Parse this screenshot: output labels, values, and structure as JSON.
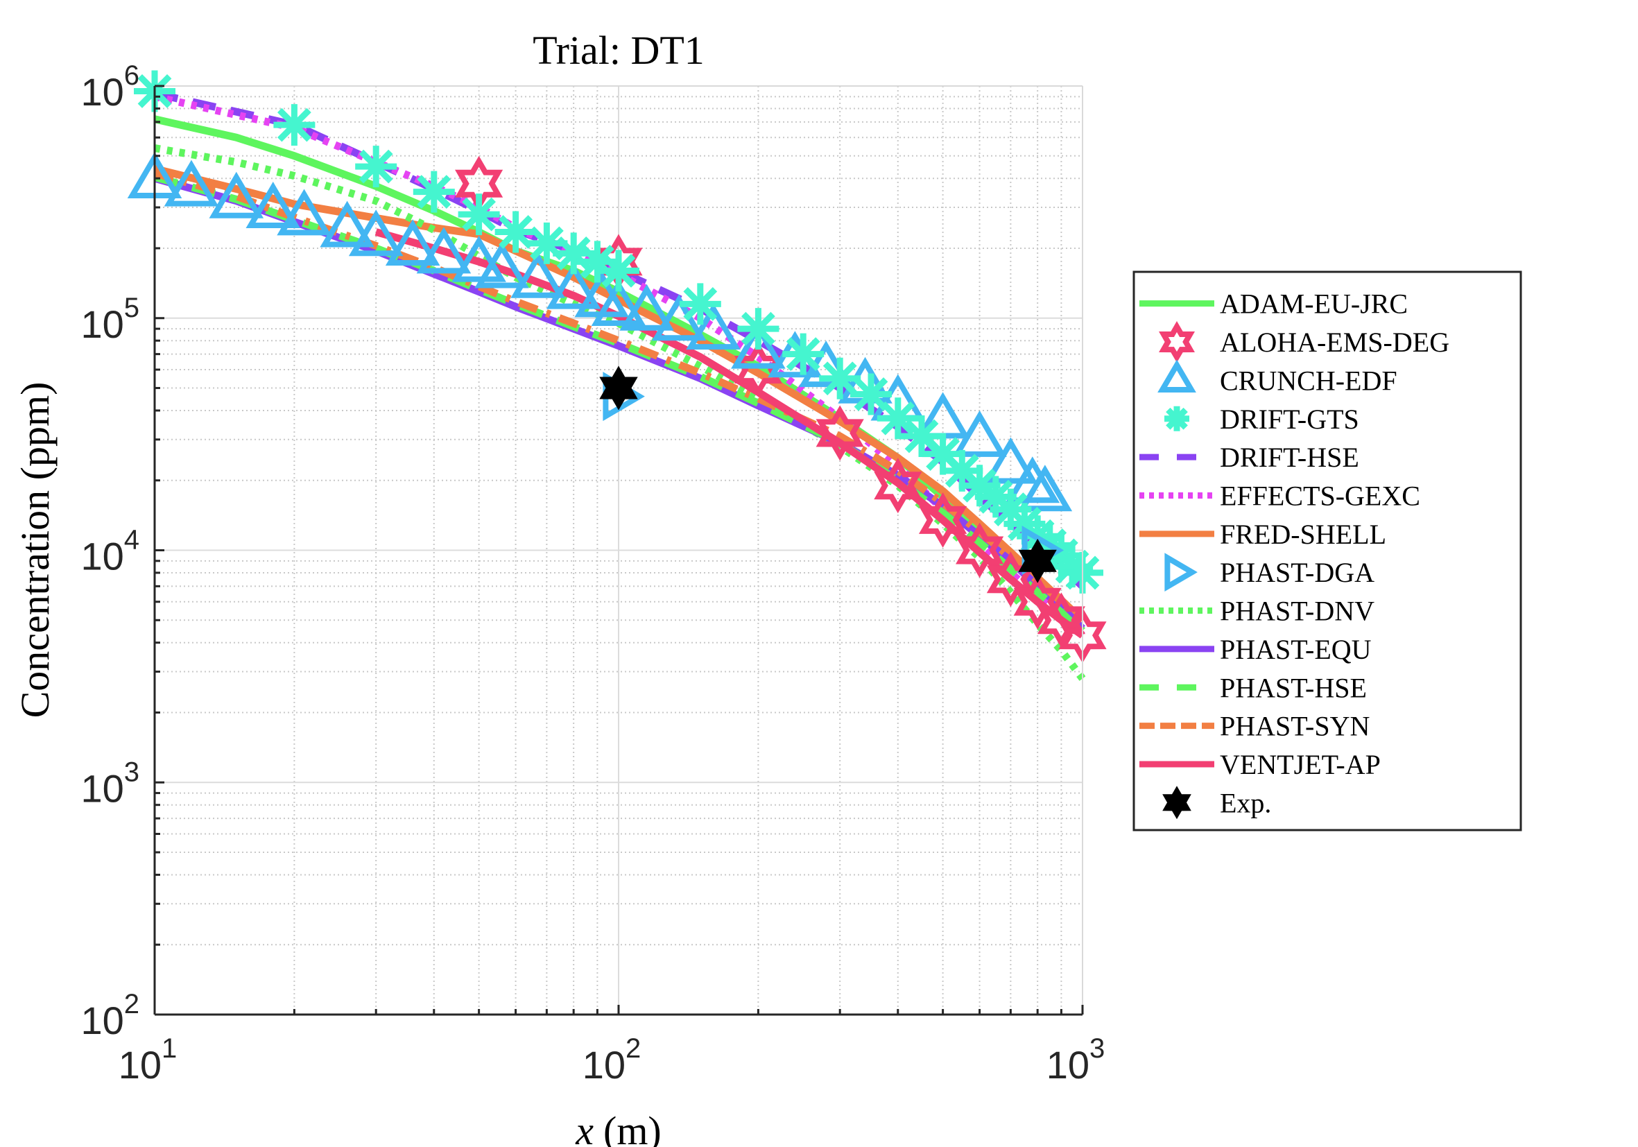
{
  "chart_data": {
    "type": "line",
    "title": "Trial: DT1",
    "xlabel": "x (m)",
    "xlabel_var": "x",
    "xlabel_unit": "(m)",
    "ylabel": "Concentration (ppm)",
    "xscale": "log",
    "yscale": "log",
    "xlim": [
      10,
      1000
    ],
    "ylim": [
      100,
      1000000
    ],
    "x_ticks": [
      {
        "base": "10",
        "exp": "1",
        "value": 10
      },
      {
        "base": "10",
        "exp": "2",
        "value": 100
      },
      {
        "base": "10",
        "exp": "3",
        "value": 1000
      }
    ],
    "y_ticks": [
      {
        "base": "10",
        "exp": "2",
        "value": 100
      },
      {
        "base": "10",
        "exp": "3",
        "value": 1000
      },
      {
        "base": "10",
        "exp": "4",
        "value": 10000
      },
      {
        "base": "10",
        "exp": "5",
        "value": 100000
      },
      {
        "base": "10",
        "exp": "6",
        "value": 1000000
      }
    ],
    "grid": true,
    "minor_grid": true,
    "legend_position": "outside-right",
    "series": [
      {
        "name": "ADAM-EU-JRC",
        "style": "solid",
        "marker": "none",
        "color": "#5ef55e",
        "x": [
          10,
          15,
          20,
          30,
          40,
          50,
          60,
          80,
          100,
          150,
          200,
          300,
          400,
          500,
          600,
          700,
          800,
          900,
          1000
        ],
        "y": [
          720000,
          600000,
          500000,
          370000,
          290000,
          235000,
          195000,
          160000,
          130000,
          85000,
          62000,
          37000,
          25000,
          17000,
          12000,
          9000,
          7000,
          5600,
          4500
        ]
      },
      {
        "name": "ALOHA-EMS-DEG",
        "style": "none",
        "marker": "hexagram-open",
        "color": "#f23f72",
        "x": [
          50,
          100,
          200,
          300,
          400,
          500,
          600,
          700,
          800,
          900,
          1000
        ],
        "y": [
          380000,
          175000,
          60000,
          32000,
          19000,
          13500,
          10000,
          7500,
          6000,
          5000,
          4300
        ]
      },
      {
        "name": "CRUNCH-EDF",
        "style": "none",
        "marker": "triangle-up-open",
        "color": "#43b6f2",
        "x": [
          10,
          12,
          15,
          18,
          21,
          26,
          30,
          36,
          42,
          50,
          56,
          67,
          80,
          92,
          100,
          115,
          135,
          160,
          200,
          240,
          280,
          340,
          400,
          500,
          600,
          700,
          780,
          830
        ],
        "y": [
          390000,
          360000,
          320000,
          290000,
          270000,
          240000,
          220000,
          200000,
          185000,
          170000,
          160000,
          145000,
          130000,
          120000,
          110000,
          105000,
          95000,
          87000,
          72000,
          66000,
          60000,
          51000,
          43000,
          36000,
          30000,
          23000,
          19000,
          17500
        ]
      },
      {
        "name": "DRIFT-GTS",
        "style": "none",
        "marker": "asterisk",
        "color": "#45f5cf",
        "x": [
          10,
          20,
          30,
          40,
          50,
          60,
          70,
          80,
          90,
          100,
          150,
          200,
          250,
          300,
          350,
          400,
          450,
          500,
          550,
          600,
          650,
          700,
          750,
          800,
          850,
          900,
          950,
          1000
        ],
        "y": [
          950000,
          680000,
          450000,
          350000,
          280000,
          235000,
          210000,
          190000,
          175000,
          160000,
          115000,
          90000,
          70000,
          55000,
          47000,
          37000,
          31000,
          26000,
          22000,
          19000,
          17000,
          15000,
          13000,
          11500,
          10500,
          9500,
          8500,
          8000
        ]
      },
      {
        "name": "DRIFT-HSE",
        "style": "dashed",
        "marker": "none",
        "color": "#8a43f2",
        "x": [
          10,
          20,
          30,
          40,
          50,
          60,
          80,
          100,
          150,
          200,
          300,
          400,
          500,
          600,
          700,
          800,
          900,
          1000
        ],
        "y": [
          930000,
          680000,
          470000,
          360000,
          290000,
          240000,
          195000,
          160000,
          110000,
          80000,
          50000,
          34000,
          24000,
          17000,
          13000,
          10500,
          8500,
          7000
        ]
      },
      {
        "name": "EFFECTS-GEXC",
        "style": "dotted",
        "marker": "none",
        "color": "#e543f2",
        "x": [
          10,
          20,
          30,
          40,
          50,
          60,
          80,
          100,
          150,
          200,
          300,
          400,
          500,
          600,
          700,
          800,
          900,
          1000
        ],
        "y": [
          900000,
          660000,
          470000,
          370000,
          300000,
          245000,
          190000,
          155000,
          100000,
          68000,
          37000,
          23000,
          15000,
          10500,
          8000,
          6300,
          5200,
          4300
        ]
      },
      {
        "name": "FRED-SHELL",
        "style": "solid",
        "marker": "none",
        "color": "#f27f43",
        "x": [
          10,
          15,
          20,
          30,
          40,
          50,
          60,
          80,
          100,
          150,
          200,
          300,
          400,
          500,
          600,
          700,
          800,
          900,
          1000
        ],
        "y": [
          440000,
          360000,
          310000,
          270000,
          245000,
          230000,
          195000,
          150000,
          120000,
          80000,
          58000,
          36000,
          25000,
          18000,
          13000,
          9800,
          7600,
          6100,
          5000
        ]
      },
      {
        "name": "PHAST-DGA",
        "style": "none",
        "marker": "triangle-right-open",
        "color": "#43b6f2",
        "x": [
          100,
          800
        ],
        "y": [
          46000,
          10000
        ]
      },
      {
        "name": "PHAST-DNV",
        "style": "dotted",
        "marker": "none",
        "color": "#5ef55e",
        "x": [
          10,
          15,
          20,
          30,
          40,
          50,
          60,
          80,
          100,
          150,
          200,
          300,
          400,
          500,
          600,
          700,
          800,
          900,
          1000
        ],
        "y": [
          540000,
          470000,
          410000,
          320000,
          240000,
          185000,
          150000,
          115000,
          95000,
          62000,
          45000,
          28000,
          19000,
          13000,
          9300,
          6600,
          4800,
          3700,
          2800
        ]
      },
      {
        "name": "PHAST-EQU",
        "style": "solid",
        "marker": "none",
        "color": "#8a43f2",
        "x": [
          10,
          15,
          20,
          30,
          40,
          50,
          60,
          80,
          100,
          150,
          200,
          300,
          400,
          500,
          600,
          700,
          800,
          900,
          1000
        ],
        "y": [
          400000,
          320000,
          260000,
          195000,
          155000,
          130000,
          112000,
          90000,
          76000,
          55000,
          42000,
          29000,
          21000,
          15500,
          11500,
          9000,
          7000,
          5700,
          4600
        ]
      },
      {
        "name": "PHAST-HSE",
        "style": "dashed",
        "marker": "none",
        "color": "#5ef55e",
        "x": [
          10,
          15,
          20,
          30,
          40,
          50,
          60,
          80,
          100,
          150,
          200,
          300,
          400,
          500,
          600,
          700,
          800,
          900,
          1000
        ],
        "y": [
          405000,
          325000,
          265000,
          200000,
          160000,
          133000,
          115000,
          92000,
          78000,
          56000,
          43000,
          29000,
          20000,
          14500,
          10800,
          8300,
          6600,
          5400,
          4400
        ]
      },
      {
        "name": "PHAST-SYN",
        "style": "dashdot",
        "marker": "none",
        "color": "#f27f43",
        "x": [
          10,
          15,
          20,
          30,
          40,
          50,
          60,
          80,
          100,
          150,
          200,
          300,
          400,
          500,
          600,
          700,
          800,
          900,
          1000
        ],
        "y": [
          420000,
          335000,
          272000,
          205000,
          165000,
          137000,
          118000,
          95000,
          80000,
          58000,
          45000,
          31000,
          22000,
          16000,
          12000,
          9300,
          7400,
          6000,
          5000
        ]
      },
      {
        "name": "VENTJET-AP",
        "style": "solid",
        "marker": "none",
        "color": "#f23f72",
        "x": [
          30,
          40,
          50,
          60,
          80,
          100,
          150,
          200,
          300,
          400,
          500,
          600,
          700,
          800,
          900,
          1000
        ],
        "y": [
          235000,
          200000,
          175000,
          155000,
          125000,
          102000,
          68000,
          48000,
          29000,
          19500,
          13500,
          9800,
          7500,
          6000,
          5000,
          4300
        ]
      },
      {
        "name": "Exp.",
        "style": "none",
        "marker": "hexagram-filled",
        "color": "#000000",
        "x": [
          100,
          800
        ],
        "y": [
          50000,
          9000
        ]
      }
    ]
  }
}
